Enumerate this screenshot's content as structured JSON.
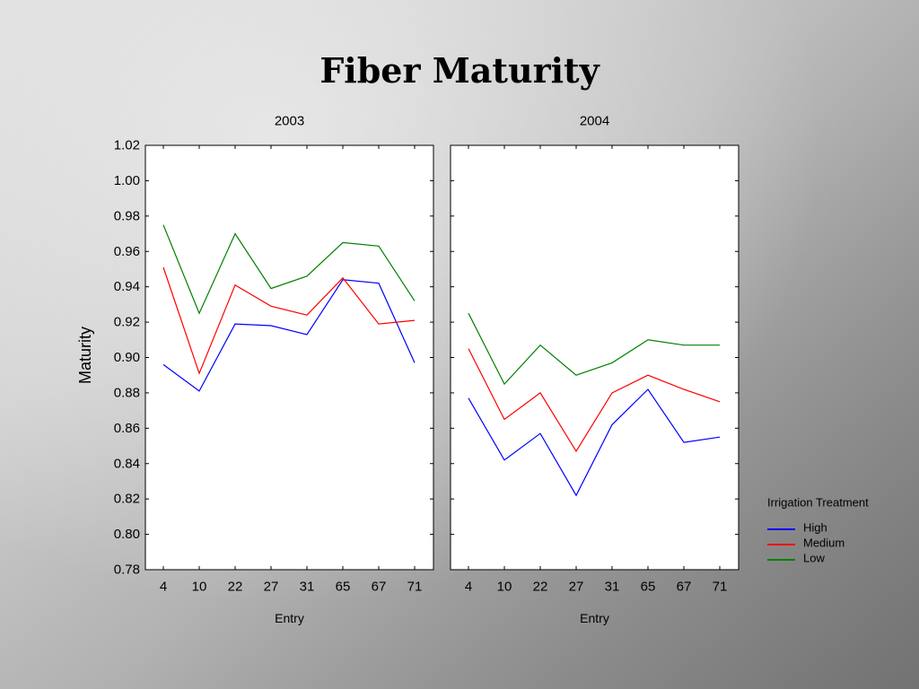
{
  "slide": {
    "title": "Fiber Maturity"
  },
  "chart_data": {
    "type": "line",
    "ylabel": "Maturity",
    "ylim": [
      0.78,
      1.02
    ],
    "yticks": [
      "0.78",
      "0.80",
      "0.82",
      "0.84",
      "0.86",
      "0.88",
      "0.90",
      "0.92",
      "0.94",
      "0.96",
      "0.98",
      "1.00",
      "1.02"
    ],
    "legend": {
      "title": "Irrigation Treatment",
      "placement": "right"
    },
    "series_colors": {
      "High": "#0000ff",
      "Medium": "#ff0000",
      "Low": "#008000"
    },
    "panels": [
      {
        "title": "2003",
        "xlabel": "Entry",
        "categories": [
          "4",
          "10",
          "22",
          "27",
          "31",
          "65",
          "67",
          "71"
        ],
        "series": [
          {
            "name": "High",
            "values": [
              0.896,
              0.881,
              0.919,
              0.918,
              0.913,
              0.944,
              0.942,
              0.897
            ]
          },
          {
            "name": "Medium",
            "values": [
              0.951,
              0.891,
              0.941,
              0.929,
              0.924,
              0.945,
              0.919,
              0.921
            ]
          },
          {
            "name": "Low",
            "values": [
              0.975,
              0.925,
              0.97,
              0.939,
              0.946,
              0.965,
              0.963,
              0.932
            ]
          }
        ]
      },
      {
        "title": "2004",
        "xlabel": "Entry",
        "categories": [
          "4",
          "10",
          "22",
          "27",
          "31",
          "65",
          "67",
          "71"
        ],
        "series": [
          {
            "name": "High",
            "values": [
              0.877,
              0.842,
              0.857,
              0.822,
              0.862,
              0.882,
              0.852,
              0.855
            ]
          },
          {
            "name": "Medium",
            "values": [
              0.905,
              0.865,
              0.88,
              0.847,
              0.88,
              0.89,
              0.882,
              0.875
            ]
          },
          {
            "name": "Low",
            "values": [
              0.925,
              0.885,
              0.907,
              0.89,
              0.897,
              0.91,
              0.907,
              0.907
            ]
          }
        ]
      }
    ]
  }
}
